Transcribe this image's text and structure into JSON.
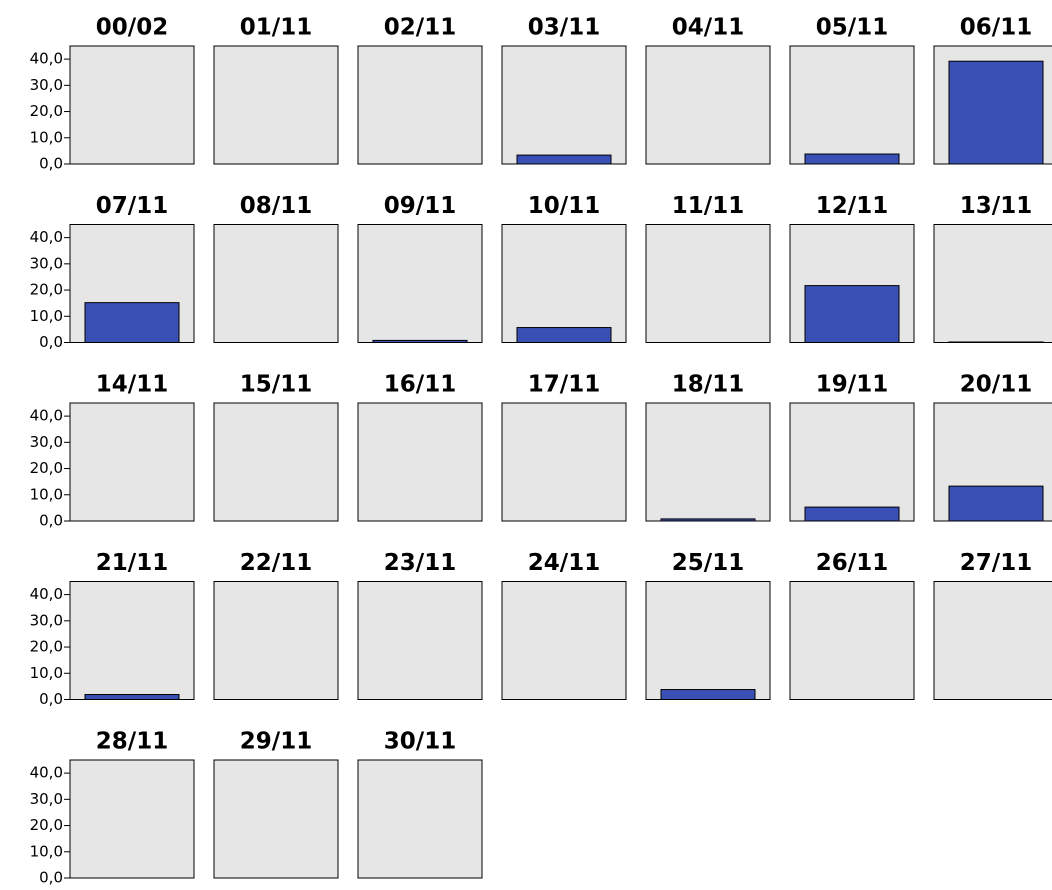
{
  "chart_data": {
    "type": "bar",
    "categories": [
      "00/02",
      "01/11",
      "02/11",
      "03/11",
      "04/11",
      "05/11",
      "06/11",
      "07/11",
      "08/11",
      "09/11",
      "10/11",
      "11/11",
      "12/11",
      "13/11",
      "14/11",
      "15/11",
      "16/11",
      "17/11",
      "18/11",
      "19/11",
      "20/11",
      "21/11",
      "22/11",
      "23/11",
      "24/11",
      "25/11",
      "26/11",
      "27/11",
      "28/11",
      "29/11",
      "30/11"
    ],
    "values": [
      0,
      0,
      0,
      3.4,
      0,
      3.8,
      39.2,
      15.2,
      null,
      0.8,
      5.7,
      null,
      21.7,
      0.2,
      0,
      0,
      0,
      0,
      0.8,
      5.3,
      13.3,
      1.9,
      0,
      0,
      0,
      3.8,
      0,
      0,
      null,
      null,
      null
    ],
    "color": "#3a50b4",
    "ylim": [
      0,
      45
    ],
    "yticks": [
      {
        "value": 0,
        "label": "0,0"
      },
      {
        "value": 10,
        "label": "10,0"
      },
      {
        "value": 20,
        "label": "20,0"
      },
      {
        "value": 30,
        "label": "30,0"
      },
      {
        "value": 40,
        "label": "40,0"
      }
    ]
  }
}
